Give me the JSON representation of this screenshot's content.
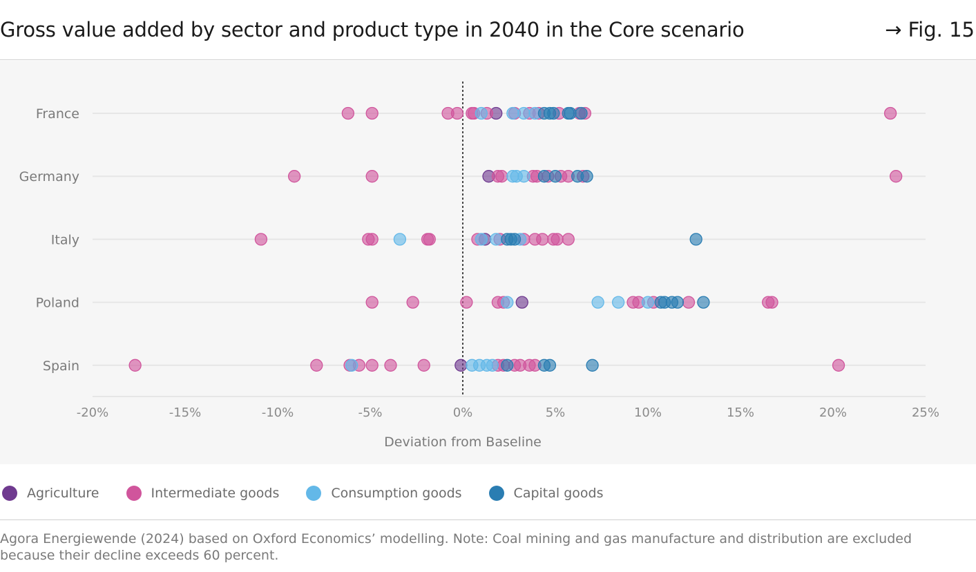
{
  "header": {
    "title": "Gross value added by sector and product type in 2040 in the Core scenario",
    "figure_ref": "→ Fig. 15"
  },
  "legend": [
    {
      "label": "Agriculture",
      "color": "#6f3a8f"
    },
    {
      "label": "Intermediate goods",
      "color": "#d0559c"
    },
    {
      "label": "Consumption goods",
      "color": "#63b8e8"
    },
    {
      "label": "Capital goods",
      "color": "#2a7db2"
    }
  ],
  "source": "Agora Energiewende (2024) based on Oxford Economics’ modelling. Note: Coal mining and gas manufacture and distribution are excluded because their decline exceeds 60 percent.",
  "chart_data": {
    "type": "scatter",
    "title": "",
    "xlabel": "Deviation from Baseline",
    "ylabel": "",
    "xlim": [
      -20,
      25
    ],
    "x_ticks": [
      -20,
      -15,
      -10,
      -5,
      0,
      5,
      10,
      15,
      20,
      25
    ],
    "x_tick_labels": [
      "-20%",
      "-15%",
      "-10%",
      "-5%",
      "0%",
      "5%",
      "10%",
      "15%",
      "20%",
      "25%"
    ],
    "categories": [
      "France",
      "Germany",
      "Italy",
      "Poland",
      "Spain"
    ],
    "reference_line": 0,
    "grid": "horizontal",
    "legend_position": "bottom",
    "series": [
      {
        "name": "Agriculture",
        "color": "#6f3a8f",
        "points": [
          {
            "c": "France",
            "x": 1.8
          },
          {
            "c": "Germany",
            "x": 1.4
          },
          {
            "c": "Italy",
            "x": 1.2
          },
          {
            "c": "Poland",
            "x": 3.2
          },
          {
            "c": "Spain",
            "x": -0.1
          }
        ]
      },
      {
        "name": "Intermediate goods",
        "color": "#d0559c",
        "points": [
          {
            "c": "France",
            "x": -6.2
          },
          {
            "c": "France",
            "x": -4.9
          },
          {
            "c": "France",
            "x": -0.8
          },
          {
            "c": "France",
            "x": -0.3
          },
          {
            "c": "France",
            "x": 0.5
          },
          {
            "c": "France",
            "x": 0.6
          },
          {
            "c": "France",
            "x": 1.3
          },
          {
            "c": "France",
            "x": 2.8
          },
          {
            "c": "France",
            "x": 3.6
          },
          {
            "c": "France",
            "x": 4.1
          },
          {
            "c": "France",
            "x": 5.2
          },
          {
            "c": "France",
            "x": 6.3
          },
          {
            "c": "France",
            "x": 6.6
          },
          {
            "c": "France",
            "x": 23.1
          },
          {
            "c": "Germany",
            "x": -9.1
          },
          {
            "c": "Germany",
            "x": -4.9
          },
          {
            "c": "Germany",
            "x": 1.9
          },
          {
            "c": "Germany",
            "x": 2.1
          },
          {
            "c": "Germany",
            "x": 3.8
          },
          {
            "c": "Germany",
            "x": 4.0
          },
          {
            "c": "Germany",
            "x": 4.6
          },
          {
            "c": "Germany",
            "x": 5.3
          },
          {
            "c": "Germany",
            "x": 5.7
          },
          {
            "c": "Germany",
            "x": 6.5
          },
          {
            "c": "Germany",
            "x": 23.4
          },
          {
            "c": "Italy",
            "x": -10.9
          },
          {
            "c": "Italy",
            "x": -5.1
          },
          {
            "c": "Italy",
            "x": -4.9
          },
          {
            "c": "Italy",
            "x": -1.9
          },
          {
            "c": "Italy",
            "x": -1.8
          },
          {
            "c": "Italy",
            "x": 0.8
          },
          {
            "c": "Italy",
            "x": 2.0
          },
          {
            "c": "Italy",
            "x": 3.3
          },
          {
            "c": "Italy",
            "x": 3.9
          },
          {
            "c": "Italy",
            "x": 4.3
          },
          {
            "c": "Italy",
            "x": 4.9
          },
          {
            "c": "Italy",
            "x": 5.1
          },
          {
            "c": "Italy",
            "x": 5.7
          },
          {
            "c": "Poland",
            "x": -4.9
          },
          {
            "c": "Poland",
            "x": -2.7
          },
          {
            "c": "Poland",
            "x": 0.2
          },
          {
            "c": "Poland",
            "x": 1.9
          },
          {
            "c": "Poland",
            "x": 2.2
          },
          {
            "c": "Poland",
            "x": 9.2
          },
          {
            "c": "Poland",
            "x": 9.5
          },
          {
            "c": "Poland",
            "x": 10.3
          },
          {
            "c": "Poland",
            "x": 12.2
          },
          {
            "c": "Poland",
            "x": 16.5
          },
          {
            "c": "Poland",
            "x": 16.7
          },
          {
            "c": "Spain",
            "x": -17.7
          },
          {
            "c": "Spain",
            "x": -7.9
          },
          {
            "c": "Spain",
            "x": -6.1
          },
          {
            "c": "Spain",
            "x": -5.6
          },
          {
            "c": "Spain",
            "x": -4.9
          },
          {
            "c": "Spain",
            "x": -3.9
          },
          {
            "c": "Spain",
            "x": -2.1
          },
          {
            "c": "Spain",
            "x": 1.9
          },
          {
            "c": "Spain",
            "x": 2.2
          },
          {
            "c": "Spain",
            "x": 2.8
          },
          {
            "c": "Spain",
            "x": 3.1
          },
          {
            "c": "Spain",
            "x": 3.6
          },
          {
            "c": "Spain",
            "x": 3.9
          },
          {
            "c": "Spain",
            "x": 20.3
          }
        ]
      },
      {
        "name": "Consumption goods",
        "color": "#63b8e8",
        "points": [
          {
            "c": "France",
            "x": 1.0
          },
          {
            "c": "France",
            "x": 2.7
          },
          {
            "c": "France",
            "x": 3.3
          },
          {
            "c": "France",
            "x": 3.9
          },
          {
            "c": "Germany",
            "x": 2.7
          },
          {
            "c": "Germany",
            "x": 2.9
          },
          {
            "c": "Germany",
            "x": 3.3
          },
          {
            "c": "Italy",
            "x": 1.0
          },
          {
            "c": "Italy",
            "x": 1.8
          },
          {
            "c": "Italy",
            "x": 3.1
          },
          {
            "c": "Italy",
            "x": -3.4
          },
          {
            "c": "Poland",
            "x": 2.4
          },
          {
            "c": "Poland",
            "x": 7.3
          },
          {
            "c": "Poland",
            "x": 8.4
          },
          {
            "c": "Poland",
            "x": 10.0
          },
          {
            "c": "Spain",
            "x": 0.5
          },
          {
            "c": "Spain",
            "x": 0.9
          },
          {
            "c": "Spain",
            "x": 1.3
          },
          {
            "c": "Spain",
            "x": 1.6
          },
          {
            "c": "Spain",
            "x": -6.0
          }
        ]
      },
      {
        "name": "Capital goods",
        "color": "#2a7db2",
        "points": [
          {
            "c": "France",
            "x": 4.4
          },
          {
            "c": "France",
            "x": 4.7
          },
          {
            "c": "France",
            "x": 4.9
          },
          {
            "c": "France",
            "x": 5.7
          },
          {
            "c": "France",
            "x": 5.8
          },
          {
            "c": "France",
            "x": 6.4
          },
          {
            "c": "Germany",
            "x": 4.4
          },
          {
            "c": "Germany",
            "x": 5.0
          },
          {
            "c": "Germany",
            "x": 6.2
          },
          {
            "c": "Germany",
            "x": 6.7
          },
          {
            "c": "Italy",
            "x": 2.4
          },
          {
            "c": "Italy",
            "x": 2.6
          },
          {
            "c": "Italy",
            "x": 2.8
          },
          {
            "c": "Italy",
            "x": 12.6
          },
          {
            "c": "Poland",
            "x": 10.7
          },
          {
            "c": "Poland",
            "x": 10.9
          },
          {
            "c": "Poland",
            "x": 11.3
          },
          {
            "c": "Poland",
            "x": 11.6
          },
          {
            "c": "Poland",
            "x": 13.0
          },
          {
            "c": "Spain",
            "x": 2.4
          },
          {
            "c": "Spain",
            "x": 4.4
          },
          {
            "c": "Spain",
            "x": 4.7
          },
          {
            "c": "Spain",
            "x": 7.0
          }
        ]
      }
    ]
  }
}
